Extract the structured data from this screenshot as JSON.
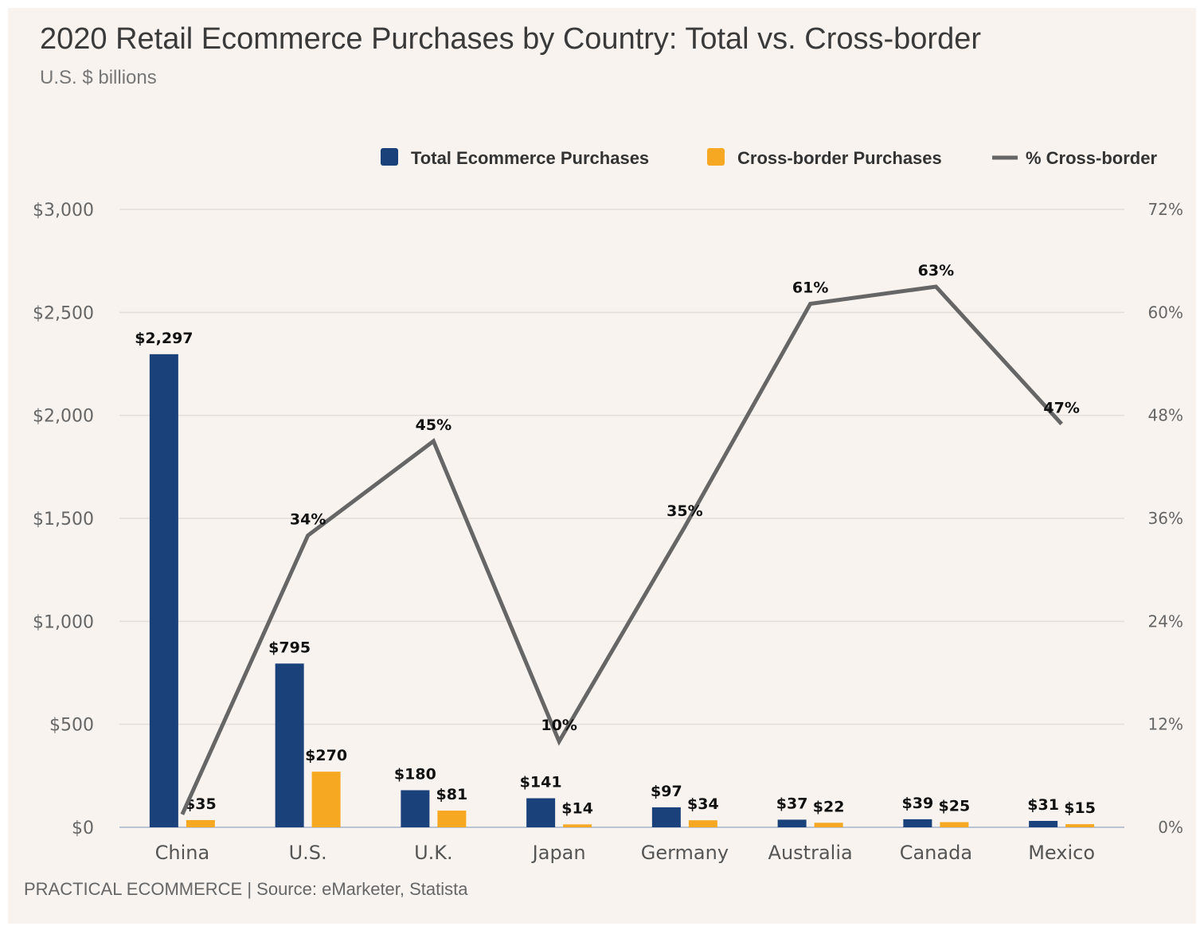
{
  "title": "2020 Retail Ecommerce Purchases by Country: Total vs. Cross-border",
  "subtitle": "U.S. $ billions",
  "source": "PRACTICAL ECOMMERCE | Source: eMarketer, Statista",
  "colors": {
    "total": "#1a417a",
    "cross": "#f7a823",
    "pct_line": "#666666",
    "grid": "#e2dedb",
    "axis": "#b9c3d3",
    "background": "#f8f3ef"
  },
  "chart_data": {
    "type": "bar",
    "categories": [
      "China",
      "U.S.",
      "U.K.",
      "Japan",
      "Germany",
      "Australia",
      "Canada",
      "Mexico"
    ],
    "series": [
      {
        "name": "Total Ecommerce Purchases",
        "axis": "left",
        "values": [
          2297,
          795,
          180,
          141,
          97,
          37,
          39,
          31
        ],
        "labels": [
          "$2,297",
          "$795",
          "$180",
          "$141",
          "$97",
          "$37",
          "$39",
          "$31"
        ],
        "color": "#1a417a"
      },
      {
        "name": "Cross-border Purchases",
        "axis": "left",
        "values": [
          35,
          270,
          81,
          14,
          34,
          22,
          25,
          15
        ],
        "labels": [
          "$35",
          "$270",
          "$81",
          "$14",
          "$34",
          "$22",
          "$25",
          "$15"
        ],
        "color": "#f7a823"
      },
      {
        "name": "% Cross-border",
        "type": "line",
        "axis": "right",
        "values": [
          1.5,
          34,
          45,
          10,
          35,
          61,
          63,
          47
        ],
        "labels": [
          "",
          "34%",
          "45%",
          "10%",
          "35%",
          "61%",
          "63%",
          "47%"
        ],
        "color": "#666666"
      }
    ],
    "y_left": {
      "lim": [
        0,
        3000
      ],
      "ticks": [
        0,
        500,
        1000,
        1500,
        2000,
        2500,
        3000
      ],
      "tick_labels": [
        "$0",
        "$500",
        "$1,000",
        "$1,500",
        "$2,000",
        "$2,500",
        "$3,000"
      ]
    },
    "y_right": {
      "lim": [
        0,
        72
      ],
      "ticks": [
        0,
        12,
        24,
        36,
        48,
        60,
        72
      ],
      "tick_labels": [
        "0%",
        "12%",
        "24%",
        "36%",
        "48%",
        "60%",
        "72%"
      ]
    },
    "grid": true,
    "legend_position": "top-right",
    "xlabel": "",
    "ylabel": ""
  }
}
